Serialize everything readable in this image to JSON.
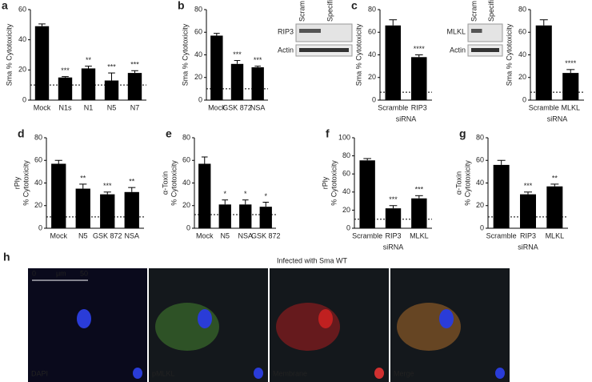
{
  "chart_data": [
    {
      "type": "bar",
      "panel": "a",
      "ylabel": [
        "Sma % Cytotoxicity"
      ],
      "categories": [
        "Mock",
        "N1s",
        "N1",
        "N5",
        "N7"
      ],
      "values": [
        49,
        15,
        21,
        13,
        18
      ],
      "errors": [
        1.5,
        0.6,
        1.5,
        5,
        1.5
      ],
      "sig": [
        null,
        "***",
        "**",
        "***",
        "***"
      ],
      "baseline": 10,
      "ylim": [
        0,
        60
      ],
      "yticks": [
        0,
        20,
        40,
        60
      ]
    },
    {
      "type": "bar",
      "panel": "b",
      "ylabel": [
        "Sma % Cytotoxicity"
      ],
      "categories": [
        "Mock",
        "GSK 872",
        "NSA"
      ],
      "values": [
        57,
        32,
        29
      ],
      "errors": [
        2,
        3,
        1
      ],
      "sig": [
        null,
        "***",
        "***"
      ],
      "baseline": 10,
      "ylim": [
        0,
        80
      ],
      "yticks": [
        0,
        20,
        40,
        60,
        80
      ]
    },
    {
      "type": "bar",
      "panel": "c",
      "ylabel": [
        "Sma % Cytotoxicity"
      ],
      "categories": [
        "Scramble",
        "RIP3"
      ],
      "xlabel": "siRNA",
      "values": [
        66,
        38
      ],
      "errors": [
        5,
        2
      ],
      "sig": [
        null,
        "****"
      ],
      "baseline": 7,
      "ylim": [
        0,
        80
      ],
      "yticks": [
        0,
        20,
        40,
        60,
        80
      ]
    },
    {
      "type": "bar",
      "ylabel": [
        "Sma % Cytotoxicity"
      ],
      "categories": [
        "Scramble",
        "MLKL"
      ],
      "xlabel": "siRNA",
      "values": [
        66,
        24
      ],
      "errors": [
        5,
        3
      ],
      "sig": [
        null,
        "****"
      ],
      "baseline": 7,
      "ylim": [
        0,
        80
      ],
      "yticks": [
        0,
        20,
        40,
        60,
        80
      ]
    },
    {
      "type": "bar",
      "panel": "d",
      "ylabel": [
        "rPly",
        "% Cytotoxicity"
      ],
      "categories": [
        "Mock",
        "N5",
        "GSK 872",
        "NSA"
      ],
      "values": [
        57,
        35,
        30,
        32
      ],
      "errors": [
        3,
        4,
        2,
        4
      ],
      "sig": [
        null,
        "**",
        "***",
        "**"
      ],
      "baseline": 10,
      "ylim": [
        0,
        80
      ],
      "yticks": [
        0,
        20,
        40,
        60,
        80
      ]
    },
    {
      "type": "bar",
      "panel": "e",
      "ylabel": [
        "α-Toxin",
        "% Cytotoxicity"
      ],
      "categories": [
        "Mock",
        "N5",
        "NSA",
        "GSK 872"
      ],
      "values": [
        57,
        21,
        21,
        19
      ],
      "errors": [
        6,
        4,
        4,
        4
      ],
      "sig": [
        null,
        "*",
        "*",
        "*"
      ],
      "baseline": 12,
      "ylim": [
        0,
        80
      ],
      "yticks": [
        0,
        20,
        40,
        60,
        80
      ]
    },
    {
      "type": "bar",
      "panel": "f",
      "ylabel": [
        "rPly",
        "% Cytotoxicity"
      ],
      "categories": [
        "Scramble",
        "RIP3",
        "MLKL"
      ],
      "xlabel": "siRNA",
      "values": [
        75,
        22,
        33
      ],
      "errors": [
        2,
        3,
        3
      ],
      "sig": [
        null,
        "***",
        "***"
      ],
      "baseline": 10,
      "ylim": [
        0,
        100
      ],
      "yticks": [
        0,
        20,
        40,
        60,
        80,
        100
      ]
    },
    {
      "type": "bar",
      "panel": "g",
      "ylabel": [
        "α-Toxin",
        "% Cytotoxicity"
      ],
      "categories": [
        "Scramble",
        "RIP3",
        "MLKL"
      ],
      "xlabel": "siRNA",
      "values": [
        56,
        30,
        37
      ],
      "errors": [
        4,
        2,
        2
      ],
      "sig": [
        null,
        "***",
        "**"
      ],
      "baseline": 10,
      "ylim": [
        0,
        80
      ],
      "yticks": [
        0,
        20,
        40,
        60,
        80
      ]
    }
  ],
  "blots": [
    {
      "columns": [
        "Scram",
        "Specific siRNA"
      ],
      "rows": [
        "RIP3",
        "Actin"
      ]
    },
    {
      "columns": [
        "Scram",
        "Specific siRNA"
      ],
      "rows": [
        "MLKL",
        "Actin"
      ]
    }
  ],
  "figure_h": {
    "panel": "h",
    "title": "Infected with Sma WT",
    "scale": [
      "0",
      "μm",
      "50"
    ],
    "channels": [
      {
        "label": "DAPI",
        "color": "#4a6cf0"
      },
      {
        "label": "pMLKL",
        "color": "#5fbf3a"
      },
      {
        "label": "Membrane",
        "color": "#ff2020"
      },
      {
        "label": "Merge",
        "color": "#ff9a30"
      }
    ]
  }
}
